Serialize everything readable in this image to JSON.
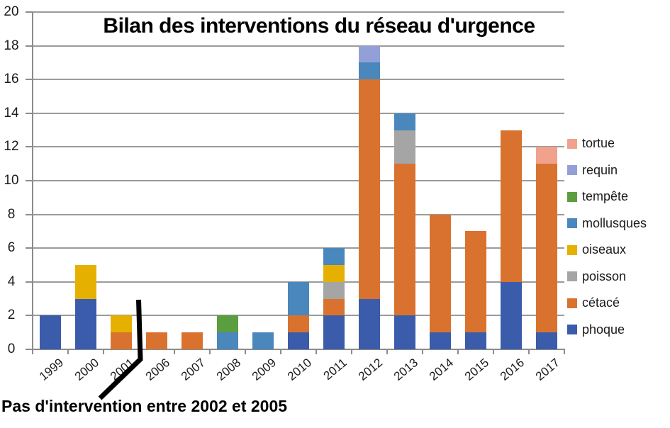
{
  "chart_data": {
    "type": "bar",
    "stacked": true,
    "title": "Bilan des interventions du réseau d'urgence",
    "categories": [
      "1999",
      "2000",
      "2001",
      "2006",
      "2007",
      "2008",
      "2009",
      "2010",
      "2011",
      "2012",
      "2013",
      "2014",
      "2015",
      "2016",
      "2017"
    ],
    "series": [
      {
        "name": "phoque",
        "color": "#3B5CAA",
        "values": [
          2,
          3,
          0,
          0,
          0,
          0,
          0,
          1,
          2,
          3,
          2,
          1,
          1,
          4,
          1
        ]
      },
      {
        "name": "cétacé",
        "color": "#D9722E",
        "values": [
          0,
          0,
          1,
          1,
          1,
          0,
          0,
          1,
          1,
          13,
          9,
          7,
          6,
          9,
          10
        ]
      },
      {
        "name": "poisson",
        "color": "#A5A5A5",
        "values": [
          0,
          0,
          0,
          0,
          0,
          0,
          0,
          0,
          1,
          0,
          2,
          0,
          0,
          0,
          0
        ]
      },
      {
        "name": "oiseaux",
        "color": "#E6B000",
        "values": [
          0,
          2,
          1,
          0,
          0,
          0,
          0,
          0,
          1,
          0,
          0,
          0,
          0,
          0,
          0
        ]
      },
      {
        "name": "mollusques",
        "color": "#4A87BC",
        "values": [
          0,
          0,
          0,
          0,
          0,
          1,
          1,
          2,
          1,
          1,
          1,
          0,
          0,
          0,
          0
        ]
      },
      {
        "name": "tempête",
        "color": "#5B9E40",
        "values": [
          0,
          0,
          0,
          0,
          0,
          1,
          0,
          0,
          0,
          0,
          0,
          0,
          0,
          0,
          0
        ]
      },
      {
        "name": "requin",
        "color": "#93A0D8",
        "values": [
          0,
          0,
          0,
          0,
          0,
          0,
          0,
          0,
          0,
          1,
          0,
          0,
          0,
          0,
          0
        ]
      },
      {
        "name": "tortue",
        "color": "#F1A28C",
        "values": [
          0,
          0,
          0,
          0,
          0,
          0,
          0,
          0,
          0,
          0,
          0,
          0,
          0,
          0,
          1
        ]
      }
    ],
    "totals": [
      2,
      5,
      2,
      1,
      1,
      2,
      1,
      4,
      6,
      18,
      14,
      8,
      7,
      13,
      12
    ],
    "legend_order_top_to_bottom": [
      "tortue",
      "requin",
      "tempête",
      "mollusques",
      "oiseaux",
      "poisson",
      "cétacé",
      "phoque"
    ],
    "legend_position": "right",
    "grid": true,
    "ylim": [
      0,
      20
    ],
    "ytick_step": 2,
    "ytick_labels": [
      "0",
      "2",
      "4",
      "6",
      "8",
      "10",
      "12",
      "14",
      "16",
      "18",
      "20"
    ],
    "annotation": "Pas d'intervention entre 2002 et 2005",
    "axis_break_between": [
      "2001",
      "2006"
    ],
    "colors": {
      "grid": "#9b9b9b",
      "axis": "#8c8c8c",
      "text": "#1a1a1a",
      "break_line": "#000000"
    }
  }
}
